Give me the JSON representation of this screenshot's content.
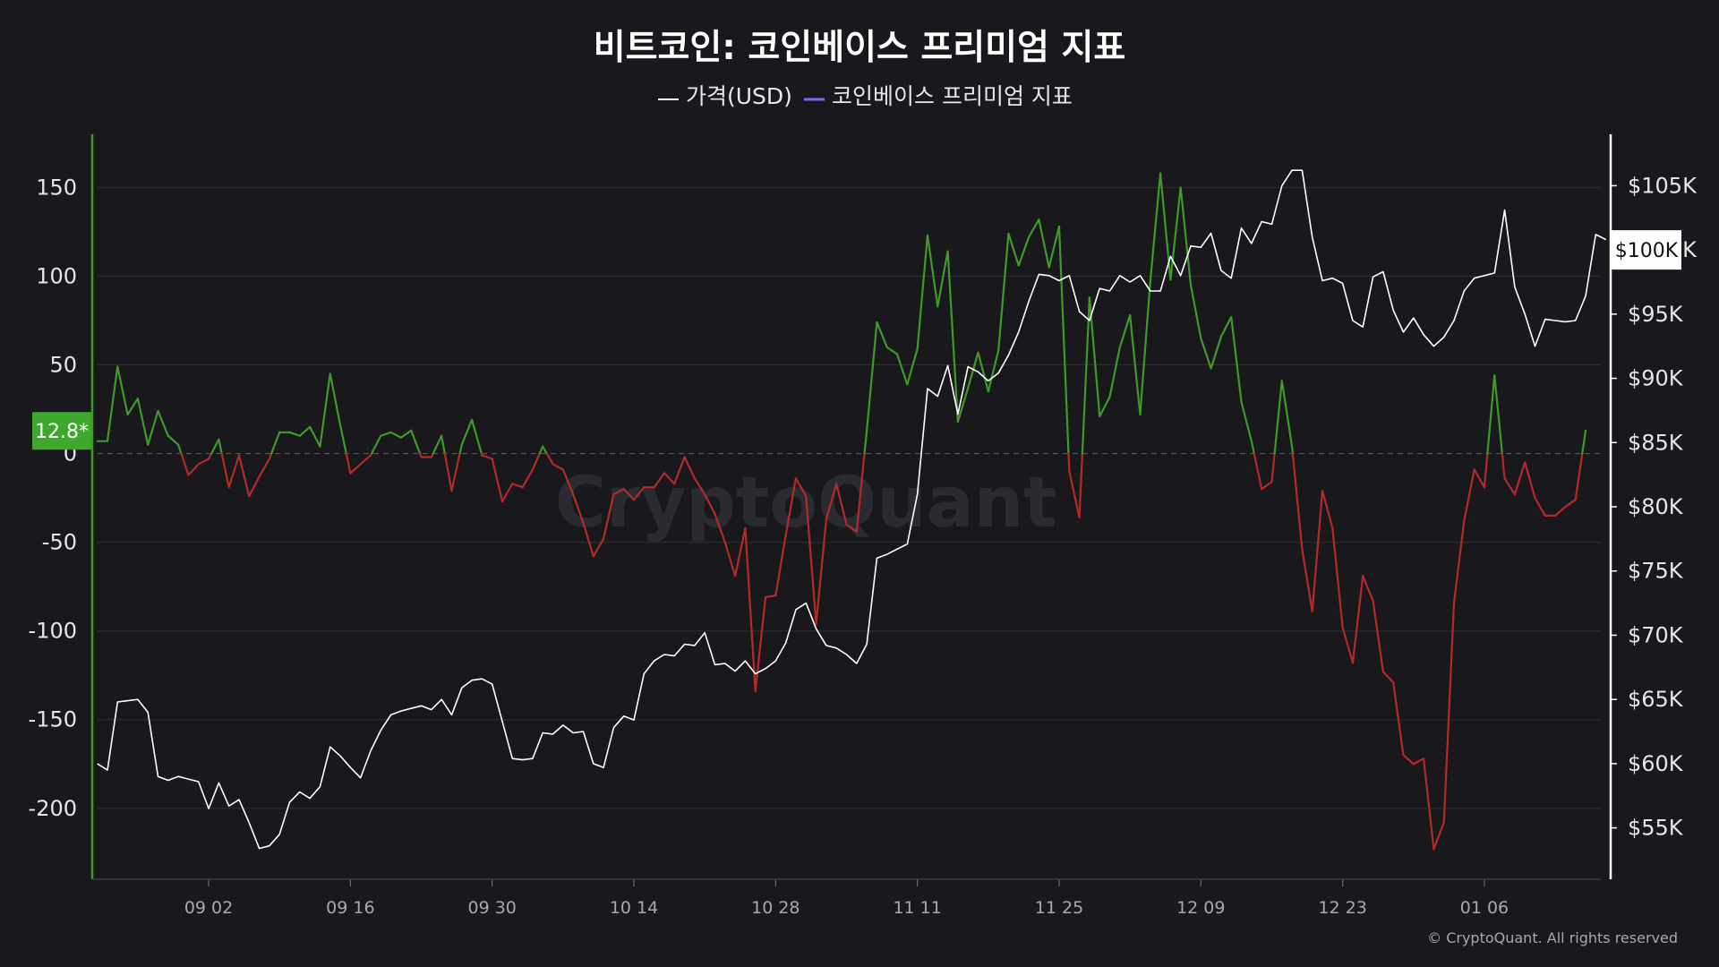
{
  "chart_data": {
    "type": "line",
    "title": "비트코인: 코인베이스 프리미엄 지표",
    "legend": {
      "placement": "top-center",
      "entries": [
        {
          "name": "가격(USD)",
          "color": "#ffffff"
        },
        {
          "name": "코인베이스 프리미엄 지표",
          "color": "#7b6cf0"
        }
      ]
    },
    "x_ticks": [
      "09 02",
      "09 16",
      "09 30",
      "10 14",
      "10 28",
      "11 11",
      "11 25",
      "12 09",
      "12 23",
      "01 06"
    ],
    "x_range": [
      -11.5,
      137.5
    ],
    "y_left": {
      "range": [
        -240,
        180
      ],
      "ticks": [
        150,
        100,
        50,
        0,
        -50,
        -100,
        -150,
        -200
      ]
    },
    "y_right": {
      "range": [
        51000,
        109000
      ],
      "ticks": [
        105000,
        100000,
        95000,
        90000,
        85000,
        80000,
        75000,
        70000,
        65000,
        60000,
        55000
      ],
      "tick_labels": [
        "$105K",
        "$100K",
        "$95K",
        "$90K",
        "$85K",
        "$80K",
        "$75K",
        "$70K",
        "$65K",
        "$60K",
        "$55K"
      ]
    },
    "current": {
      "premium_label": "12.8*",
      "premium_value": 12.8,
      "price_label": "$100K",
      "price_value": 100000
    },
    "colors": {
      "positive": "#3f9a2a",
      "negative": "#b42a2a",
      "price": "#ffffff",
      "current_badge": "#3ea82e"
    },
    "grid": true,
    "zero_line": "dashed",
    "premium": {
      "name": "코인베이스 프리미엄 지표",
      "start_day": -11,
      "values": [
        7,
        7,
        49,
        22,
        31,
        5,
        24,
        10,
        5,
        -12,
        -6,
        -3,
        8,
        -19,
        -1,
        -24,
        -13,
        -3,
        12,
        12,
        10,
        15,
        4,
        45,
        16,
        -11,
        -6,
        -1,
        10,
        12,
        9,
        13,
        -2,
        -2,
        10,
        -21,
        5,
        19,
        -1,
        -3,
        -27,
        -17,
        -19,
        -9,
        4,
        -6,
        -9,
        -23,
        -39,
        -58,
        -48,
        -23,
        -20,
        -26,
        -19,
        -19,
        -11,
        -17,
        -2,
        -14,
        -23,
        -34,
        -50,
        -69,
        -42,
        -134,
        -81,
        -80,
        -46,
        -14,
        -24,
        -96,
        -37,
        -17,
        -40,
        -44,
        13,
        74,
        60,
        56,
        39,
        59,
        123,
        83,
        114,
        18,
        37,
        57,
        35,
        58,
        124,
        106,
        122,
        132,
        105,
        128,
        -10,
        -36,
        88,
        21,
        32,
        60,
        78,
        22,
        97,
        158,
        98,
        150,
        95,
        65,
        48,
        66,
        77,
        29,
        7,
        -20,
        -16,
        41,
        4,
        -54,
        -89,
        -21,
        -42,
        -98,
        -118,
        -69,
        -83,
        -123,
        -129,
        -170,
        -175,
        -172,
        -223,
        -208,
        -84,
        -38,
        -9,
        -19,
        44,
        -14,
        -23,
        -5,
        -25,
        -35,
        -35,
        -30,
        -26,
        13
      ]
    },
    "price": {
      "name": "가격(USD)",
      "start_day": -11,
      "values": [
        60000,
        59500,
        64800,
        64900,
        65000,
        64000,
        59000,
        58700,
        59000,
        58800,
        58600,
        56500,
        58500,
        56700,
        57200,
        55400,
        53400,
        53600,
        54500,
        57000,
        57800,
        57300,
        58200,
        61300,
        60600,
        59700,
        58900,
        61000,
        62600,
        63800,
        64100,
        64300,
        64500,
        64200,
        65000,
        63800,
        65900,
        66500,
        66600,
        66200,
        63300,
        60400,
        60300,
        60400,
        62400,
        62300,
        63000,
        62400,
        62500,
        60000,
        59700,
        62800,
        63700,
        63400,
        67000,
        68000,
        68500,
        68400,
        69300,
        69200,
        70200,
        67700,
        67800,
        67200,
        68000,
        67000,
        67400,
        68000,
        69400,
        72000,
        72500,
        70500,
        69200,
        69000,
        68500,
        67800,
        69300,
        76000,
        76300,
        76700,
        77100,
        81000,
        89200,
        88600,
        91000,
        87200,
        90900,
        90500,
        89800,
        90400,
        91800,
        93600,
        96000,
        98100,
        98000,
        97600,
        98000,
        95200,
        94500,
        97000,
        96800,
        98000,
        97500,
        98000,
        96800,
        96800,
        99500,
        98000,
        100300,
        100200,
        101300,
        98400,
        97800,
        101700,
        100500,
        102200,
        102000,
        105000,
        106200,
        106200,
        101000,
        97600,
        97800,
        97400,
        94500,
        94000,
        97900,
        98300,
        95300,
        93600,
        94700,
        93400,
        92500,
        93200,
        94500,
        96800,
        97800,
        98000,
        98200,
        103100,
        97100,
        95000,
        92500,
        94600,
        94500,
        94400,
        94500,
        96400,
        101200,
        100800
      ]
    }
  },
  "footer": {
    "copyright": "© CryptoQuant. All rights reserved"
  },
  "watermark": "CryptoQuant"
}
